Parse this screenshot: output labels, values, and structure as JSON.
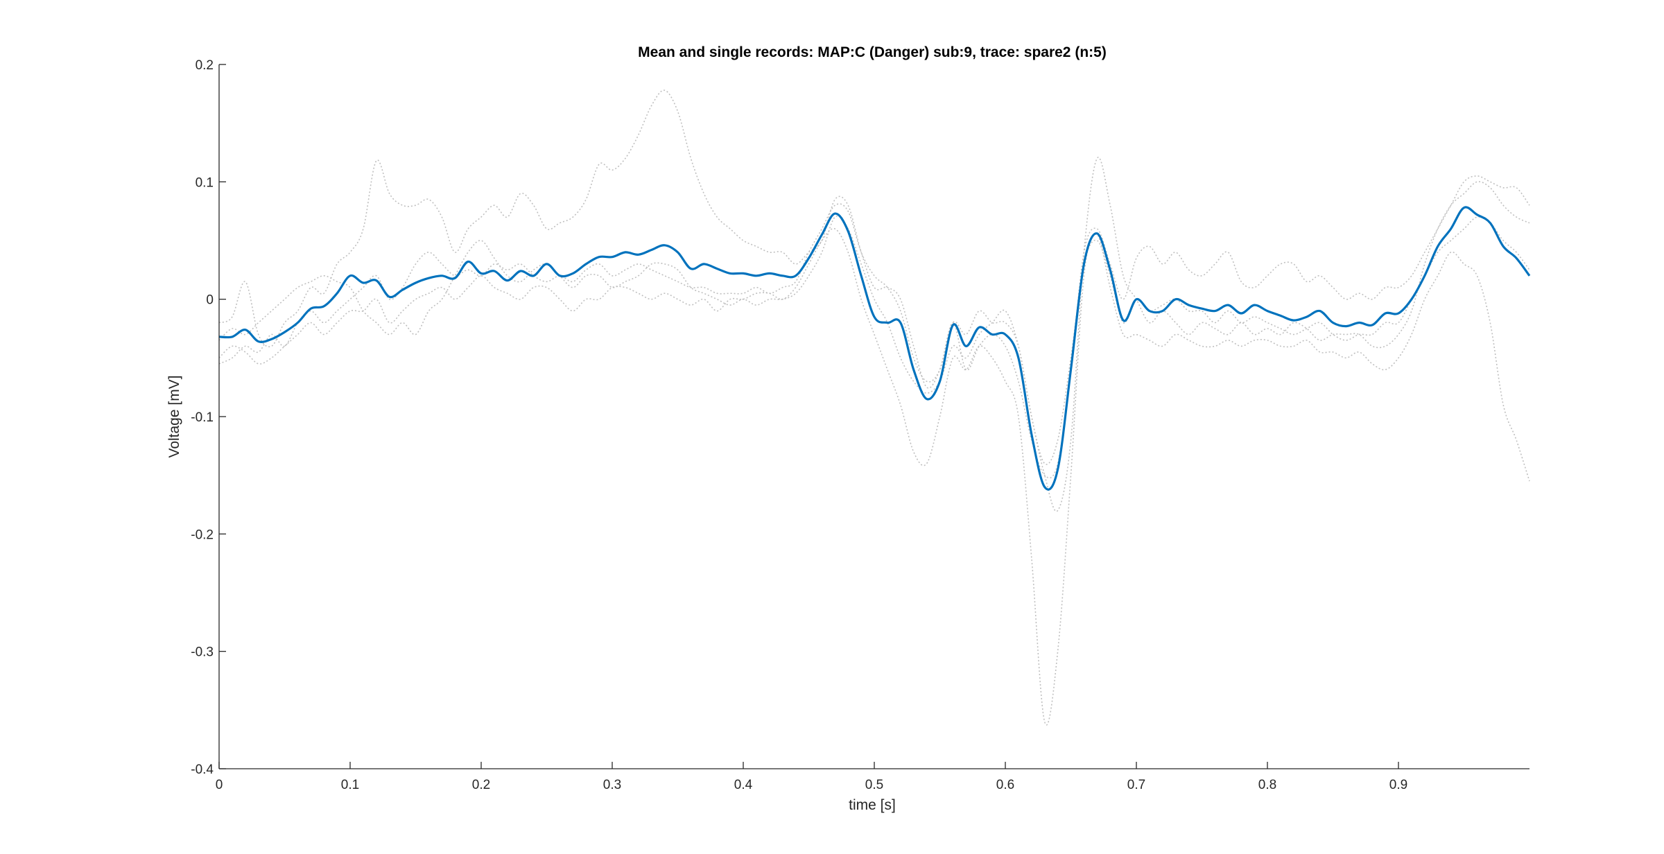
{
  "chart_data": {
    "type": "line",
    "title": "Mean and single records: MAP:C (Danger) sub:9, trace: spare2 (n:5)",
    "xlabel": "time [s]",
    "ylabel": "Voltage [mV]",
    "xlim": [
      0,
      1
    ],
    "ylim": [
      -0.4,
      0.2
    ],
    "x_ticks": [
      0,
      0.1,
      0.2,
      0.3,
      0.4,
      0.5,
      0.6,
      0.7,
      0.8,
      0.9
    ],
    "x_tick_labels": [
      "0",
      "0.1",
      "0.2",
      "0.3",
      "0.4",
      "0.5",
      "0.6",
      "0.7",
      "0.8",
      "0.9"
    ],
    "y_ticks": [
      -0.4,
      -0.3,
      -0.2,
      -0.1,
      0,
      0.1,
      0.2
    ],
    "y_tick_labels": [
      "-0.4",
      "-0.3",
      "-0.2",
      "-0.1",
      "0",
      "0.1",
      "0.2"
    ],
    "grid": false,
    "colors": {
      "mean": "#0072BD",
      "single": "#BFBFBF",
      "axis": "#262626"
    },
    "series": [
      {
        "role": "mean",
        "x": [
          0,
          0.01,
          0.02,
          0.03,
          0.04,
          0.05,
          0.06,
          0.07,
          0.08,
          0.09,
          0.1,
          0.11,
          0.12,
          0.13,
          0.14,
          0.15,
          0.16,
          0.17,
          0.18,
          0.19,
          0.2,
          0.21,
          0.22,
          0.23,
          0.24,
          0.25,
          0.26,
          0.27,
          0.28,
          0.29,
          0.3,
          0.31,
          0.32,
          0.33,
          0.34,
          0.35,
          0.36,
          0.37,
          0.38,
          0.39,
          0.4,
          0.41,
          0.42,
          0.43,
          0.44,
          0.45,
          0.46,
          0.47,
          0.48,
          0.49,
          0.5,
          0.51,
          0.52,
          0.53,
          0.54,
          0.55,
          0.56,
          0.57,
          0.58,
          0.59,
          0.6,
          0.61,
          0.62,
          0.63,
          0.64,
          0.65,
          0.66,
          0.67,
          0.68,
          0.69,
          0.7,
          0.71,
          0.72,
          0.73,
          0.74,
          0.75,
          0.76,
          0.77,
          0.78,
          0.79,
          0.8,
          0.81,
          0.82,
          0.83,
          0.84,
          0.85,
          0.86,
          0.87,
          0.88,
          0.89,
          0.9,
          0.91,
          0.92,
          0.93,
          0.94,
          0.95,
          0.96,
          0.97,
          0.98,
          0.99,
          1.0
        ],
        "y": [
          -0.032,
          -0.032,
          -0.026,
          -0.036,
          -0.034,
          -0.028,
          -0.02,
          -0.008,
          -0.006,
          0.005,
          0.02,
          0.014,
          0.016,
          0.002,
          0.008,
          0.014,
          0.018,
          0.02,
          0.018,
          0.032,
          0.022,
          0.024,
          0.016,
          0.024,
          0.02,
          0.03,
          0.02,
          0.022,
          0.03,
          0.036,
          0.036,
          0.04,
          0.038,
          0.042,
          0.046,
          0.04,
          0.026,
          0.03,
          0.026,
          0.022,
          0.022,
          0.02,
          0.022,
          0.02,
          0.02,
          0.035,
          0.055,
          0.073,
          0.058,
          0.02,
          -0.015,
          -0.02,
          -0.02,
          -0.06,
          -0.085,
          -0.07,
          -0.022,
          -0.04,
          -0.024,
          -0.03,
          -0.03,
          -0.05,
          -0.115,
          -0.16,
          -0.145,
          -0.06,
          0.03,
          0.056,
          0.025,
          -0.018,
          0.0,
          -0.01,
          -0.01,
          0.0,
          -0.005,
          -0.008,
          -0.01,
          -0.005,
          -0.012,
          -0.005,
          -0.01,
          -0.014,
          -0.018,
          -0.015,
          -0.01,
          -0.02,
          -0.023,
          -0.02,
          -0.022,
          -0.012,
          -0.012,
          0.0,
          0.02,
          0.045,
          0.06,
          0.078,
          0.072,
          0.065,
          0.045,
          0.035,
          0.02
        ]
      },
      {
        "role": "single",
        "x": [
          0,
          0.01,
          0.02,
          0.03,
          0.04,
          0.05,
          0.06,
          0.07,
          0.08,
          0.09,
          0.1,
          0.11,
          0.12,
          0.13,
          0.14,
          0.15,
          0.16,
          0.17,
          0.18,
          0.19,
          0.2,
          0.21,
          0.22,
          0.23,
          0.24,
          0.25,
          0.26,
          0.27,
          0.28,
          0.29,
          0.3,
          0.31,
          0.32,
          0.33,
          0.34,
          0.35,
          0.36,
          0.37,
          0.38,
          0.39,
          0.4,
          0.41,
          0.42,
          0.43,
          0.44,
          0.45,
          0.46,
          0.47,
          0.48,
          0.49,
          0.5,
          0.51,
          0.52,
          0.53,
          0.54,
          0.55,
          0.56,
          0.57,
          0.58,
          0.59,
          0.6,
          0.61,
          0.62,
          0.63,
          0.64,
          0.65,
          0.66,
          0.67,
          0.68,
          0.69,
          0.7,
          0.71,
          0.72,
          0.73,
          0.74,
          0.75,
          0.76,
          0.77,
          0.78,
          0.79,
          0.8,
          0.81,
          0.82,
          0.83,
          0.84,
          0.85,
          0.86,
          0.87,
          0.88,
          0.89,
          0.9,
          0.91,
          0.92,
          0.93,
          0.94,
          0.95,
          0.96,
          0.97,
          0.98,
          0.99,
          1.0
        ],
        "y": [
          -0.02,
          -0.015,
          0.015,
          -0.03,
          -0.04,
          -0.02,
          -0.01,
          0.01,
          0.005,
          0.03,
          0.04,
          0.06,
          0.118,
          0.09,
          0.08,
          0.08,
          0.085,
          0.07,
          0.04,
          0.06,
          0.07,
          0.08,
          0.07,
          0.09,
          0.08,
          0.06,
          0.065,
          0.07,
          0.085,
          0.115,
          0.11,
          0.12,
          0.14,
          0.165,
          0.178,
          0.16,
          0.12,
          0.09,
          0.07,
          0.06,
          0.05,
          0.045,
          0.04,
          0.04,
          0.03,
          0.04,
          0.05,
          0.085,
          0.08,
          0.04,
          0.01,
          0.01,
          0.0,
          -0.04,
          -0.075,
          -0.06,
          -0.02,
          -0.06,
          -0.04,
          -0.03,
          -0.04,
          -0.07,
          -0.12,
          -0.15,
          -0.14,
          -0.06,
          0.04,
          0.06,
          0.03,
          0.0,
          0.035,
          0.045,
          0.03,
          0.04,
          0.025,
          0.02,
          0.03,
          0.04,
          0.015,
          0.01,
          0.02,
          0.03,
          0.03,
          0.015,
          0.02,
          0.01,
          0.0,
          0.005,
          0.0,
          0.01,
          0.01,
          0.02,
          0.04,
          0.06,
          0.08,
          0.1,
          0.105,
          0.1,
          0.095,
          0.095,
          0.08
        ]
      },
      {
        "role": "single",
        "x": [
          0,
          0.01,
          0.02,
          0.03,
          0.04,
          0.05,
          0.06,
          0.07,
          0.08,
          0.09,
          0.1,
          0.11,
          0.12,
          0.13,
          0.14,
          0.15,
          0.16,
          0.17,
          0.18,
          0.19,
          0.2,
          0.21,
          0.22,
          0.23,
          0.24,
          0.25,
          0.26,
          0.27,
          0.28,
          0.29,
          0.3,
          0.31,
          0.32,
          0.33,
          0.34,
          0.35,
          0.36,
          0.37,
          0.38,
          0.39,
          0.4,
          0.41,
          0.42,
          0.43,
          0.44,
          0.45,
          0.46,
          0.47,
          0.48,
          0.49,
          0.5,
          0.51,
          0.52,
          0.53,
          0.54,
          0.55,
          0.56,
          0.57,
          0.58,
          0.59,
          0.6,
          0.61,
          0.62,
          0.63,
          0.64,
          0.65,
          0.66,
          0.67,
          0.68,
          0.69,
          0.7,
          0.71,
          0.72,
          0.73,
          0.74,
          0.75,
          0.76,
          0.77,
          0.78,
          0.79,
          0.8,
          0.81,
          0.82,
          0.83,
          0.84,
          0.85,
          0.86,
          0.87,
          0.88,
          0.89,
          0.9,
          0.91,
          0.92,
          0.93,
          0.94,
          0.95,
          0.96,
          0.97,
          0.98,
          0.99,
          1.0
        ],
        "y": [
          -0.05,
          -0.04,
          -0.045,
          -0.055,
          -0.05,
          -0.04,
          -0.03,
          -0.02,
          -0.03,
          -0.02,
          -0.01,
          -0.01,
          0.0,
          -0.02,
          -0.01,
          0.0,
          0.005,
          0.01,
          0.0,
          0.01,
          0.02,
          0.01,
          0.005,
          0.0,
          0.01,
          0.01,
          0.0,
          -0.01,
          0.0,
          0.0,
          0.01,
          0.01,
          0.005,
          0.0,
          0.005,
          0.0,
          -0.005,
          0.0,
          -0.01,
          0.0,
          0.0,
          0.005,
          0.005,
          0.0,
          0.01,
          0.03,
          0.05,
          0.06,
          0.04,
          0.0,
          -0.03,
          -0.06,
          -0.09,
          -0.13,
          -0.14,
          -0.1,
          -0.05,
          -0.06,
          -0.04,
          -0.05,
          -0.07,
          -0.1,
          -0.22,
          -0.36,
          -0.3,
          -0.15,
          0.02,
          0.055,
          0.01,
          -0.03,
          -0.03,
          -0.035,
          -0.04,
          -0.03,
          -0.035,
          -0.04,
          -0.04,
          -0.035,
          -0.04,
          -0.035,
          -0.035,
          -0.04,
          -0.04,
          -0.035,
          -0.045,
          -0.045,
          -0.05,
          -0.045,
          -0.055,
          -0.06,
          -0.05,
          -0.03,
          0.0,
          0.02,
          0.04,
          0.03,
          0.02,
          -0.02,
          -0.09,
          -0.12,
          -0.155
        ]
      },
      {
        "role": "single",
        "x": [
          0,
          0.01,
          0.02,
          0.03,
          0.04,
          0.05,
          0.06,
          0.07,
          0.08,
          0.09,
          0.1,
          0.11,
          0.12,
          0.13,
          0.14,
          0.15,
          0.16,
          0.17,
          0.18,
          0.19,
          0.2,
          0.21,
          0.22,
          0.23,
          0.24,
          0.25,
          0.26,
          0.27,
          0.28,
          0.29,
          0.3,
          0.31,
          0.32,
          0.33,
          0.34,
          0.35,
          0.36,
          0.37,
          0.38,
          0.39,
          0.4,
          0.41,
          0.42,
          0.43,
          0.44,
          0.45,
          0.46,
          0.47,
          0.48,
          0.49,
          0.5,
          0.51,
          0.52,
          0.53,
          0.54,
          0.55,
          0.56,
          0.57,
          0.58,
          0.59,
          0.6,
          0.61,
          0.62,
          0.63,
          0.64,
          0.65,
          0.66,
          0.67,
          0.68,
          0.69,
          0.7,
          0.71,
          0.72,
          0.73,
          0.74,
          0.75,
          0.76,
          0.77,
          0.78,
          0.79,
          0.8,
          0.81,
          0.82,
          0.83,
          0.84,
          0.85,
          0.86,
          0.87,
          0.88,
          0.89,
          0.9,
          0.91,
          0.92,
          0.93,
          0.94,
          0.95,
          0.96,
          0.97,
          0.98,
          0.99,
          1.0
        ],
        "y": [
          -0.035,
          -0.025,
          -0.03,
          -0.02,
          -0.01,
          0.0,
          0.01,
          0.015,
          0.02,
          0.015,
          0.01,
          -0.01,
          -0.02,
          -0.03,
          -0.02,
          -0.03,
          -0.01,
          0.0,
          0.02,
          0.04,
          0.05,
          0.035,
          0.02,
          0.015,
          0.025,
          0.03,
          0.02,
          0.01,
          0.02,
          0.02,
          0.01,
          0.015,
          0.02,
          0.03,
          0.03,
          0.025,
          0.01,
          0.005,
          0.0,
          -0.005,
          0.0,
          -0.005,
          0.0,
          0.0,
          0.005,
          0.02,
          0.04,
          0.07,
          0.06,
          0.03,
          0.0,
          -0.02,
          -0.05,
          -0.07,
          -0.08,
          -0.07,
          -0.04,
          -0.05,
          -0.03,
          -0.02,
          -0.01,
          -0.04,
          -0.1,
          -0.15,
          -0.18,
          -0.12,
          0.04,
          0.12,
          0.08,
          0.02,
          0.0,
          -0.02,
          -0.01,
          -0.02,
          -0.03,
          -0.02,
          -0.025,
          -0.03,
          -0.02,
          -0.03,
          -0.025,
          -0.03,
          -0.02,
          -0.025,
          -0.035,
          -0.03,
          -0.03,
          -0.03,
          -0.04,
          -0.04,
          -0.03,
          -0.01,
          0.03,
          0.06,
          0.08,
          0.09,
          0.1,
          0.095,
          0.08,
          0.07,
          0.065
        ]
      },
      {
        "role": "single",
        "x": [
          0,
          0.01,
          0.02,
          0.03,
          0.04,
          0.05,
          0.06,
          0.07,
          0.08,
          0.09,
          0.1,
          0.11,
          0.12,
          0.13,
          0.14,
          0.15,
          0.16,
          0.17,
          0.18,
          0.19,
          0.2,
          0.21,
          0.22,
          0.23,
          0.24,
          0.25,
          0.26,
          0.27,
          0.28,
          0.29,
          0.3,
          0.31,
          0.32,
          0.33,
          0.34,
          0.35,
          0.36,
          0.37,
          0.38,
          0.39,
          0.4,
          0.41,
          0.42,
          0.43,
          0.44,
          0.45,
          0.46,
          0.47,
          0.48,
          0.49,
          0.5,
          0.51,
          0.52,
          0.53,
          0.54,
          0.55,
          0.56,
          0.57,
          0.58,
          0.59,
          0.6,
          0.61,
          0.62,
          0.63,
          0.64,
          0.65,
          0.66,
          0.67,
          0.68,
          0.69,
          0.7,
          0.71,
          0.72,
          0.73,
          0.74,
          0.75,
          0.76,
          0.77,
          0.78,
          0.79,
          0.8,
          0.81,
          0.82,
          0.83,
          0.84,
          0.85,
          0.86,
          0.87,
          0.88,
          0.89,
          0.9,
          0.91,
          0.92,
          0.93,
          0.94,
          0.95,
          0.96,
          0.97,
          0.98,
          0.99,
          1.0
        ],
        "y": [
          -0.055,
          -0.05,
          -0.04,
          -0.045,
          -0.03,
          -0.04,
          -0.02,
          -0.01,
          -0.02,
          -0.01,
          0.0,
          0.01,
          0.02,
          0.0,
          0.01,
          0.03,
          0.04,
          0.03,
          0.02,
          0.025,
          0.02,
          0.03,
          0.025,
          0.03,
          0.02,
          0.015,
          0.02,
          0.015,
          0.025,
          0.03,
          0.02,
          0.025,
          0.03,
          0.025,
          0.02,
          0.015,
          0.01,
          0.01,
          0.005,
          0.005,
          0.005,
          0.01,
          0.005,
          0.01,
          0.015,
          0.04,
          0.06,
          0.08,
          0.075,
          0.04,
          0.02,
          0.01,
          -0.01,
          -0.05,
          -0.07,
          -0.06,
          -0.02,
          -0.03,
          -0.01,
          -0.02,
          -0.02,
          -0.04,
          -0.1,
          -0.14,
          -0.12,
          -0.05,
          0.03,
          0.05,
          0.02,
          -0.02,
          0.0,
          -0.01,
          -0.005,
          0.0,
          -0.01,
          -0.01,
          -0.02,
          -0.01,
          -0.02,
          -0.015,
          -0.02,
          -0.025,
          -0.03,
          -0.025,
          -0.02,
          -0.03,
          -0.035,
          -0.03,
          -0.03,
          -0.02,
          -0.02,
          0.0,
          0.02,
          0.04,
          0.05,
          0.06,
          0.07,
          0.065,
          0.05,
          0.04,
          0.025
        ]
      }
    ]
  }
}
